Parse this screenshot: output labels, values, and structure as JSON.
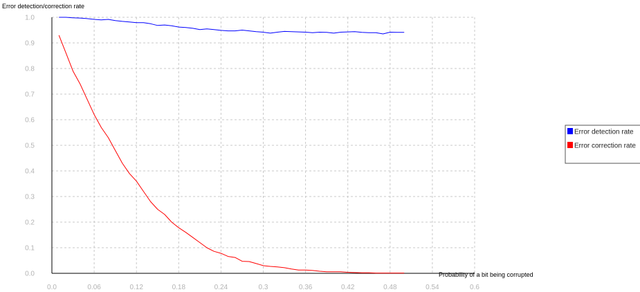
{
  "chart_data": {
    "type": "line",
    "ylabel": "Error detection/correction rate",
    "xlabel": "Probability of a bit being corrupted",
    "xlim": [
      0,
      0.6
    ],
    "ylim": [
      0,
      1.0
    ],
    "x_ticks": [
      "0.0",
      "0.06",
      "0.12",
      "0.18",
      "0.24",
      "0.3",
      "0.36",
      "0.42",
      "0.48",
      "0.54",
      "0.6"
    ],
    "y_ticks": [
      "0.0",
      "0.1",
      "0.2",
      "0.3",
      "0.4",
      "0.5",
      "0.6",
      "0.7",
      "0.8",
      "0.9",
      "1.0"
    ],
    "grid": true,
    "legend_position": "right",
    "x": [
      0.01,
      0.02,
      0.03,
      0.04,
      0.05,
      0.06,
      0.07,
      0.08,
      0.09,
      0.1,
      0.11,
      0.12,
      0.13,
      0.14,
      0.15,
      0.16,
      0.17,
      0.18,
      0.19,
      0.2,
      0.21,
      0.22,
      0.23,
      0.24,
      0.25,
      0.26,
      0.27,
      0.28,
      0.29,
      0.3,
      0.31,
      0.32,
      0.33,
      0.34,
      0.35,
      0.36,
      0.37,
      0.38,
      0.39,
      0.4,
      0.41,
      0.42,
      0.43,
      0.44,
      0.45,
      0.46,
      0.47,
      0.48,
      0.49,
      0.5
    ],
    "series": [
      {
        "name": "Error detection rate",
        "color": "#0000ff",
        "values": [
          1.0,
          1.0,
          0.998,
          0.997,
          0.995,
          0.992,
          0.99,
          0.992,
          0.987,
          0.984,
          0.982,
          0.979,
          0.979,
          0.975,
          0.968,
          0.97,
          0.967,
          0.962,
          0.96,
          0.957,
          0.952,
          0.955,
          0.952,
          0.949,
          0.947,
          0.947,
          0.95,
          0.947,
          0.944,
          0.942,
          0.938,
          0.942,
          0.945,
          0.944,
          0.943,
          0.942,
          0.94,
          0.942,
          0.941,
          0.938,
          0.942,
          0.943,
          0.944,
          0.941,
          0.94,
          0.94,
          0.935,
          0.942,
          0.941,
          0.941
        ]
      },
      {
        "name": "Error correction rate",
        "color": "#ff0000",
        "values": [
          0.93,
          0.86,
          0.79,
          0.74,
          0.68,
          0.62,
          0.57,
          0.53,
          0.48,
          0.43,
          0.39,
          0.36,
          0.32,
          0.28,
          0.25,
          0.23,
          0.2,
          0.178,
          0.16,
          0.14,
          0.12,
          0.1,
          0.086,
          0.078,
          0.066,
          0.062,
          0.047,
          0.046,
          0.038,
          0.03,
          0.027,
          0.025,
          0.022,
          0.017,
          0.013,
          0.013,
          0.011,
          0.008,
          0.006,
          0.006,
          0.006,
          0.004,
          0.003,
          0.002,
          0.002,
          0.001,
          0.001,
          0.001,
          0.001,
          0.001
        ]
      }
    ]
  }
}
